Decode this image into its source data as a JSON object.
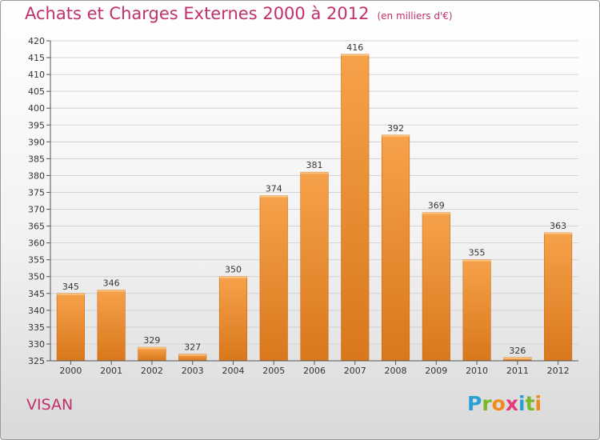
{
  "header": {
    "title": "Achats et Charges Externes 2000 à 2012",
    "subtitle": "(en milliers d'€)"
  },
  "commune": "VISAN",
  "logo": {
    "letters": [
      "P",
      "r",
      "o",
      "x",
      "i",
      "t",
      "i"
    ]
  },
  "colors": {
    "title": "#c0306a",
    "bar_top": "#f6a24a",
    "bar_bottom": "#d9771c",
    "logo": [
      "#2a9fd6",
      "#79b82a",
      "#f08a1c",
      "#e23a7a",
      "#2a9fd6",
      "#79b82a",
      "#f08a1c"
    ]
  },
  "chart_data": {
    "type": "bar",
    "categories": [
      "2000",
      "2001",
      "2002",
      "2003",
      "2004",
      "2005",
      "2006",
      "2007",
      "2008",
      "2009",
      "2010",
      "2011",
      "2012"
    ],
    "values": [
      345,
      346,
      329,
      327,
      350,
      374,
      381,
      416,
      392,
      369,
      355,
      326,
      363
    ],
    "ylim": [
      325,
      420
    ],
    "yticks": [
      325,
      330,
      335,
      340,
      345,
      350,
      355,
      360,
      365,
      370,
      375,
      380,
      385,
      390,
      395,
      400,
      405,
      410,
      415,
      420
    ],
    "grid": true
  }
}
